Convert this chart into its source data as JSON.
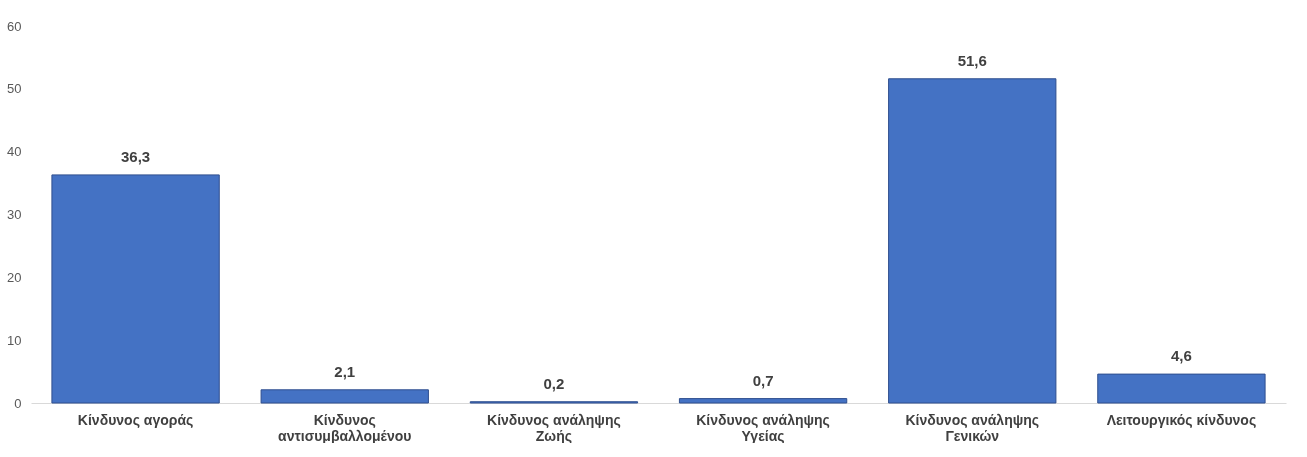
{
  "chart_data": {
    "type": "bar",
    "categories": [
      "Κίνδυνος αγοράς",
      "Κίνδυνος αντισυμβαλλομένου",
      "Κίνδυνος ανάληψης Ζωής",
      "Κίνδυνος ανάληψης Υγείας",
      "Κίνδυνος ανάληψης Γενικών",
      "Λειτουργικός κίνδυνος"
    ],
    "values": [
      36.3,
      2.1,
      0.2,
      0.7,
      51.6,
      4.6
    ],
    "value_labels": [
      "36,3",
      "2,1",
      "0,2",
      "0,7",
      "51,6",
      "4,6"
    ],
    "color": "#4472c4",
    "ylim": [
      0,
      60
    ],
    "yticks": [
      0,
      10,
      20,
      30,
      40,
      50,
      60
    ],
    "grid": false
  }
}
